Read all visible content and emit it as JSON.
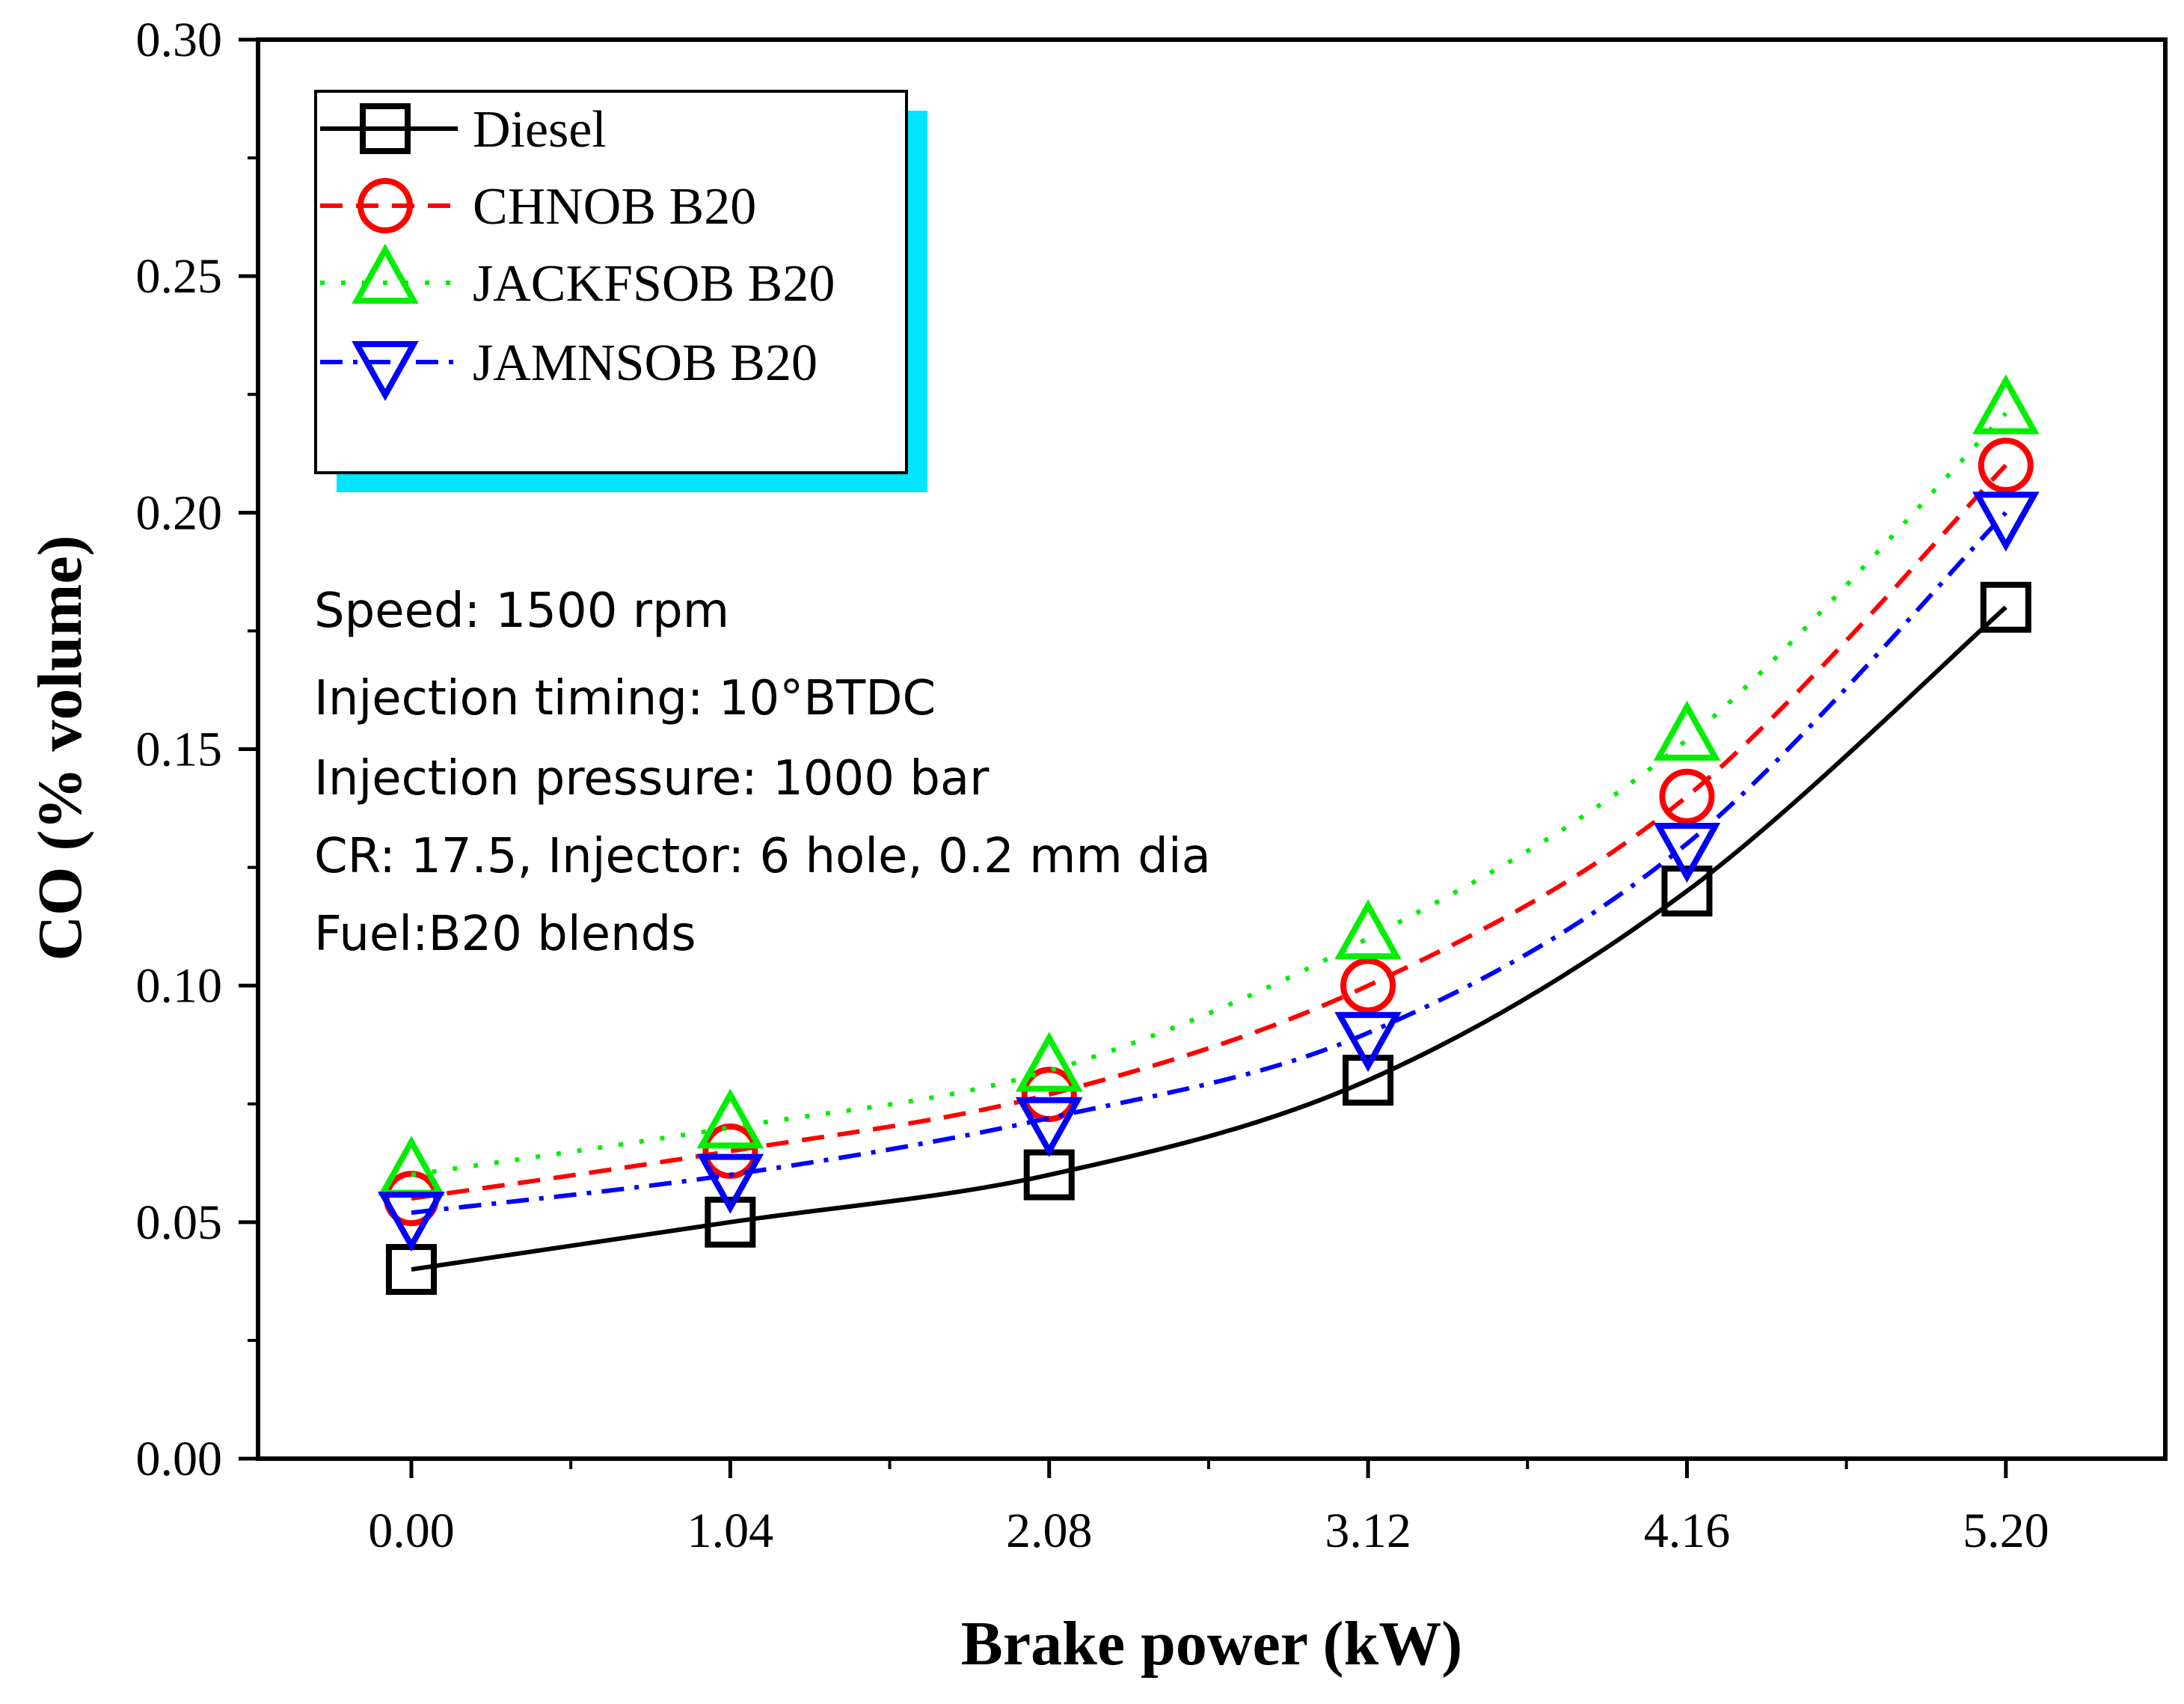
{
  "chart_data": {
    "type": "line",
    "title": "",
    "xlabel": "Brake power (kW)",
    "ylabel": "CO (% volume)",
    "x": [
      0.0,
      1.04,
      2.08,
      3.12,
      4.16,
      5.2
    ],
    "xticks": [
      "0.00",
      "1.04",
      "2.08",
      "3.12",
      "4.16",
      "5.20"
    ],
    "yticks": [
      "0.00",
      "0.05",
      "0.10",
      "0.15",
      "0.20",
      "0.25",
      "0.30"
    ],
    "xlim": [
      -0.5,
      5.72
    ],
    "ylim": [
      0,
      0.3
    ],
    "grid": false,
    "legend_position": "top-left",
    "series": [
      {
        "name": "Diesel",
        "values": [
          0.04,
          0.05,
          0.06,
          0.08,
          0.12,
          0.18
        ],
        "color": "#000000",
        "marker": "square",
        "line_style": "solid"
      },
      {
        "name": "CHNOB B20",
        "values": [
          0.055,
          0.065,
          0.077,
          0.1,
          0.14,
          0.21
        ],
        "color": "#ff0000",
        "marker": "circle",
        "line_style": "dashed"
      },
      {
        "name": "JACKFSOB B20",
        "values": [
          0.06,
          0.07,
          0.082,
          0.11,
          0.152,
          0.221
        ],
        "color": "#00ee00",
        "marker": "triangle-up",
        "line_style": "dotted"
      },
      {
        "name": "JAMNSOB B20",
        "values": [
          0.052,
          0.06,
          0.072,
          0.09,
          0.13,
          0.2
        ],
        "color": "#0000ff",
        "marker": "triangle-down",
        "line_style": "dash-dot"
      }
    ],
    "annotations": [
      "Speed: 1500 rpm",
      "Injection timing: 10°BTDC",
      "Injection pressure: 1000 bar",
      "CR: 17.5, Injector: 6 hole, 0.2 mm dia",
      "Fuel:B20 blends"
    ]
  },
  "colors": {
    "legend_shadow": "#00e5ff",
    "axis": "#000000",
    "background": "#ffffff"
  }
}
